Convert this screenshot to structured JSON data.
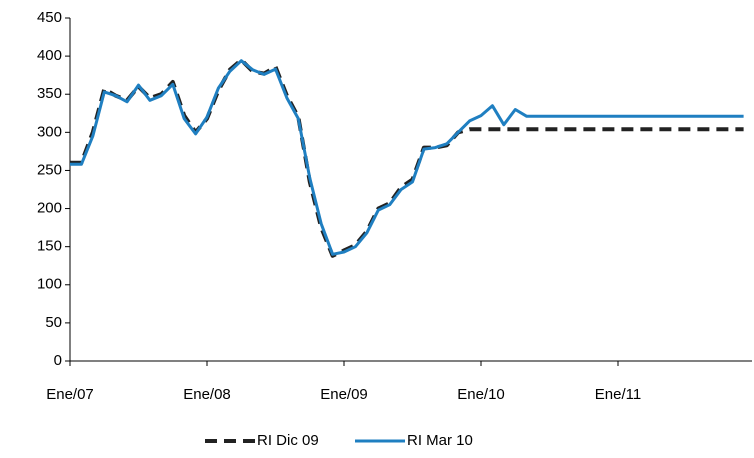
{
  "chart_data": {
    "type": "line",
    "categories": [
      "Ene/07",
      null,
      null,
      null,
      null,
      null,
      null,
      null,
      null,
      null,
      null,
      null,
      "Ene/08",
      null,
      null,
      null,
      null,
      null,
      null,
      null,
      null,
      null,
      null,
      null,
      "Ene/09",
      null,
      null,
      null,
      null,
      null,
      null,
      null,
      null,
      null,
      null,
      null,
      "Ene/10",
      null,
      null,
      null,
      null,
      null,
      null,
      null,
      null,
      null,
      null,
      null,
      "Ene/11",
      null,
      null,
      null,
      null,
      null,
      null,
      null,
      null,
      null,
      null,
      null
    ],
    "series": [
      {
        "name": "RI Dic 09",
        "color": "#222222",
        "dash": true,
        "values": [
          260,
          260,
          300,
          357,
          348,
          342,
          360,
          345,
          350,
          366,
          322,
          300,
          318,
          355,
          382,
          395,
          380,
          377,
          386,
          348,
          320,
          235,
          175,
          138,
          145,
          152,
          170,
          200,
          207,
          228,
          238,
          280,
          280,
          283,
          300,
          304,
          304,
          304,
          304,
          304,
          304,
          304,
          304,
          304,
          304,
          304,
          304,
          304,
          304,
          304,
          304,
          304,
          304,
          304,
          304,
          304,
          304,
          304,
          304,
          304
        ]
      },
      {
        "name": "RI Mar 10",
        "color": "#1f7fc1",
        "dash": false,
        "values": [
          258,
          258,
          295,
          353,
          348,
          340,
          362,
          342,
          348,
          363,
          318,
          298,
          320,
          358,
          380,
          394,
          382,
          376,
          383,
          345,
          318,
          240,
          180,
          140,
          143,
          150,
          168,
          198,
          205,
          225,
          235,
          278,
          280,
          285,
          300,
          315,
          322,
          335,
          310,
          330,
          321,
          321,
          321,
          321,
          321,
          321,
          321,
          321,
          321,
          321,
          321,
          321,
          321,
          321,
          321,
          321,
          321,
          321,
          321,
          321
        ]
      }
    ],
    "ylim": [
      0,
      450
    ],
    "yticks": [
      0,
      50,
      100,
      150,
      200,
      250,
      300,
      350,
      400,
      450
    ],
    "grid": false
  }
}
